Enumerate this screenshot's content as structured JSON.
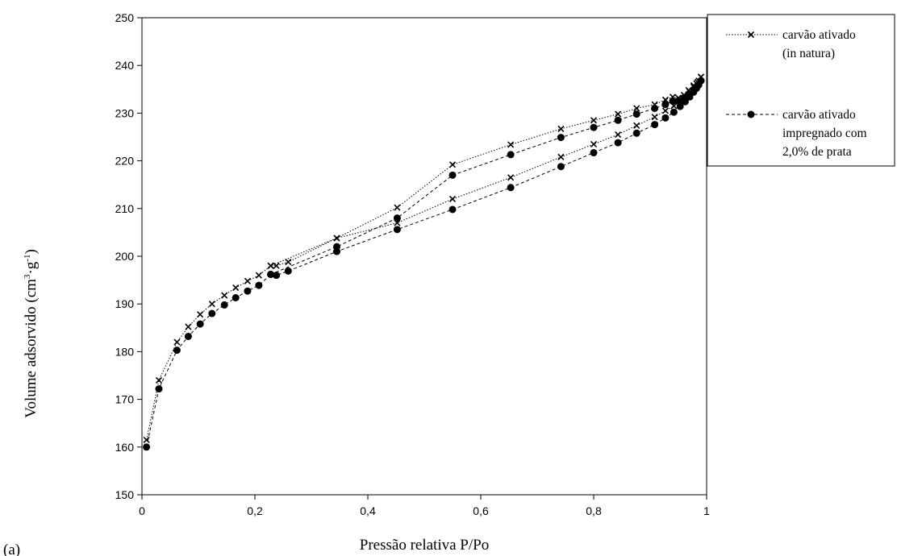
{
  "chart_data": {
    "type": "line",
    "xlabel": "Pressão relativa P/Po",
    "ylabel_main": "Volume adsorvido (cm",
    "ylabel_sup1": "3",
    "ylabel_mid": "·g",
    "ylabel_sup2": "-1",
    "ylabel_end": ")",
    "panel_label": "(a)",
    "xlim": [
      0,
      1
    ],
    "ylim": [
      150,
      250
    ],
    "x_ticks": [
      0,
      0.2,
      0.4,
      0.6,
      0.8,
      1
    ],
    "x_tick_labels": [
      "0",
      "0,2",
      "0,4",
      "0,6",
      "0,8",
      "1"
    ],
    "y_ticks": [
      150,
      160,
      170,
      180,
      190,
      200,
      210,
      220,
      230,
      240,
      250
    ],
    "y_tick_labels": [
      "150",
      "160",
      "170",
      "180",
      "190",
      "200",
      "210",
      "220",
      "230",
      "240",
      "250"
    ],
    "grid": false,
    "legend_position": "top-right-outside",
    "series": [
      {
        "name_lines": [
          "carvão ativado",
          "(in natura)"
        ],
        "marker": "x",
        "line_style": "dotted",
        "color": "#000000",
        "adsorption": [
          [
            0.008,
            161.5
          ],
          [
            0.03,
            174.0
          ],
          [
            0.062,
            182.0
          ],
          [
            0.082,
            185.2
          ],
          [
            0.103,
            187.8
          ],
          [
            0.124,
            190.0
          ],
          [
            0.146,
            191.8
          ],
          [
            0.166,
            193.4
          ],
          [
            0.187,
            194.8
          ],
          [
            0.207,
            196.0
          ],
          [
            0.228,
            198.0
          ],
          [
            0.238,
            198.0
          ],
          [
            0.259,
            198.8
          ],
          [
            0.345,
            203.8
          ],
          [
            0.452,
            207.0
          ],
          [
            0.55,
            212.0
          ],
          [
            0.653,
            216.5
          ],
          [
            0.742,
            220.8
          ],
          [
            0.8,
            223.5
          ],
          [
            0.843,
            225.5
          ],
          [
            0.876,
            227.4
          ],
          [
            0.908,
            229.2
          ],
          [
            0.927,
            230.5
          ],
          [
            0.942,
            231.5
          ],
          [
            0.953,
            232.5
          ],
          [
            0.962,
            233.5
          ],
          [
            0.97,
            234.5
          ],
          [
            0.977,
            235.5
          ],
          [
            0.982,
            236.2
          ],
          [
            0.986,
            236.8
          ],
          [
            0.99,
            237.6
          ]
        ],
        "desorption": [
          [
            0.99,
            237.6
          ],
          [
            0.984,
            236.5
          ],
          [
            0.977,
            235.8
          ],
          [
            0.968,
            234.8
          ],
          [
            0.96,
            233.8
          ],
          [
            0.95,
            233.2
          ],
          [
            0.94,
            233.4
          ],
          [
            0.927,
            232.8
          ],
          [
            0.908,
            231.8
          ],
          [
            0.876,
            231.0
          ],
          [
            0.843,
            229.8
          ],
          [
            0.8,
            228.5
          ],
          [
            0.742,
            226.7
          ],
          [
            0.653,
            223.4
          ],
          [
            0.55,
            219.2
          ],
          [
            0.452,
            210.2
          ],
          [
            0.345,
            203.8
          ],
          [
            0.228,
            198.0
          ]
        ]
      },
      {
        "name_lines": [
          "carvão ativado",
          "impregnado com",
          "2,0% de prata"
        ],
        "marker": "circle",
        "line_style": "dashed",
        "color": "#000000",
        "adsorption": [
          [
            0.008,
            160.0
          ],
          [
            0.03,
            172.2
          ],
          [
            0.062,
            180.3
          ],
          [
            0.082,
            183.2
          ],
          [
            0.103,
            185.8
          ],
          [
            0.124,
            188.0
          ],
          [
            0.146,
            189.8
          ],
          [
            0.166,
            191.3
          ],
          [
            0.187,
            192.7
          ],
          [
            0.207,
            193.9
          ],
          [
            0.228,
            196.2
          ],
          [
            0.238,
            196.0
          ],
          [
            0.259,
            196.9
          ],
          [
            0.345,
            201.0
          ],
          [
            0.452,
            205.6
          ],
          [
            0.55,
            209.8
          ],
          [
            0.653,
            214.4
          ],
          [
            0.742,
            218.8
          ],
          [
            0.8,
            221.7
          ],
          [
            0.843,
            223.8
          ],
          [
            0.876,
            225.8
          ],
          [
            0.908,
            227.6
          ],
          [
            0.927,
            229.0
          ],
          [
            0.942,
            230.2
          ],
          [
            0.953,
            231.4
          ],
          [
            0.962,
            232.4
          ],
          [
            0.97,
            233.4
          ],
          [
            0.977,
            234.4
          ],
          [
            0.982,
            235.2
          ],
          [
            0.986,
            235.9
          ],
          [
            0.99,
            236.8
          ]
        ],
        "desorption": [
          [
            0.99,
            236.8
          ],
          [
            0.984,
            235.8
          ],
          [
            0.977,
            234.9
          ],
          [
            0.968,
            234.0
          ],
          [
            0.96,
            233.2
          ],
          [
            0.95,
            232.6
          ],
          [
            0.94,
            232.5
          ],
          [
            0.927,
            231.8
          ],
          [
            0.908,
            231.0
          ],
          [
            0.876,
            229.8
          ],
          [
            0.843,
            228.5
          ],
          [
            0.8,
            227.0
          ],
          [
            0.742,
            224.9
          ],
          [
            0.653,
            221.3
          ],
          [
            0.55,
            217.0
          ],
          [
            0.452,
            208.0
          ],
          [
            0.345,
            202.0
          ],
          [
            0.228,
            196.2
          ]
        ]
      }
    ]
  }
}
